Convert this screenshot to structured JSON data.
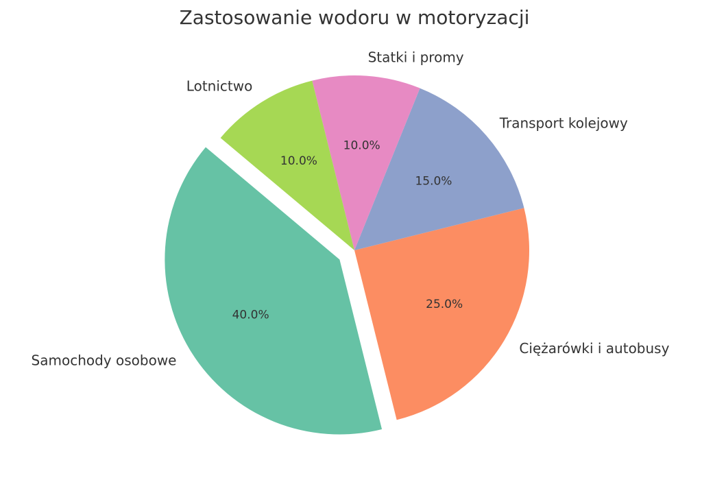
{
  "chart_data": {
    "type": "pie",
    "title": "Zastosowanie wodoru w motoryzacji",
    "categories": [
      "Samochody osobowe",
      "Ciężarówki i autobusy",
      "Transport kolejowy",
      "Statki i promy",
      "Lotnictwo"
    ],
    "values": [
      40,
      25,
      15,
      10,
      10
    ],
    "value_labels": [
      "40.0%",
      "25.0%",
      "15.0%",
      "10.0%",
      "10.0%"
    ],
    "colors": [
      "#66c2a5",
      "#fc8d62",
      "#8da0cb",
      "#e78ac3",
      "#a6d854"
    ],
    "startangle": 140,
    "explode": [
      0.1,
      0,
      0,
      0,
      0
    ]
  }
}
